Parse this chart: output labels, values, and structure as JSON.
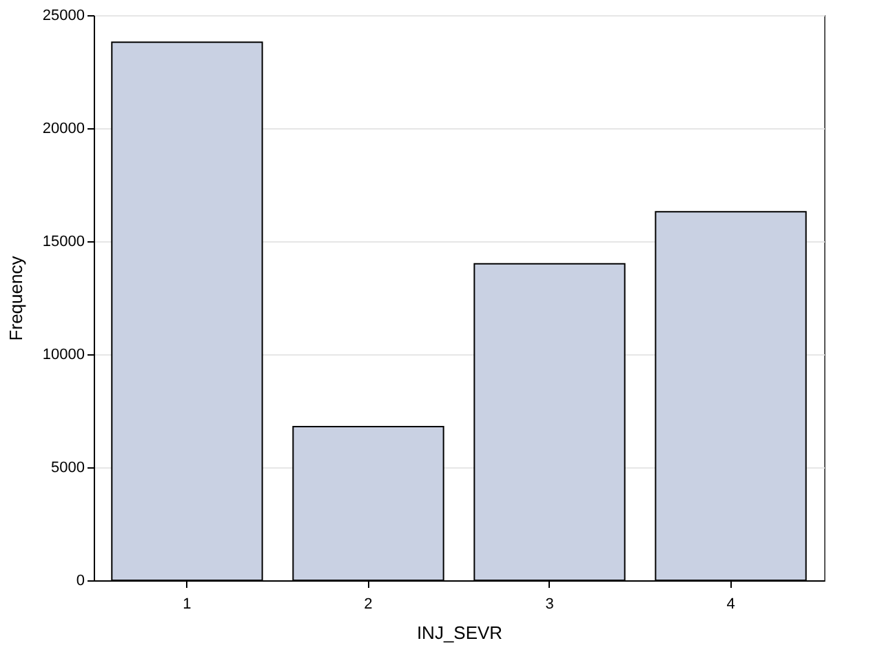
{
  "chart_data": {
    "type": "bar",
    "xlabel": "INJ_SEVR",
    "ylabel": "Frequency",
    "categories": [
      "1",
      "2",
      "3",
      "4"
    ],
    "values": [
      23800,
      6800,
      14000,
      16300
    ],
    "color": "#c9d1e3",
    "ylim": [
      0,
      25000
    ],
    "yticks": [
      0,
      5000,
      10000,
      15000,
      20000,
      25000
    ],
    "grid": "y"
  }
}
